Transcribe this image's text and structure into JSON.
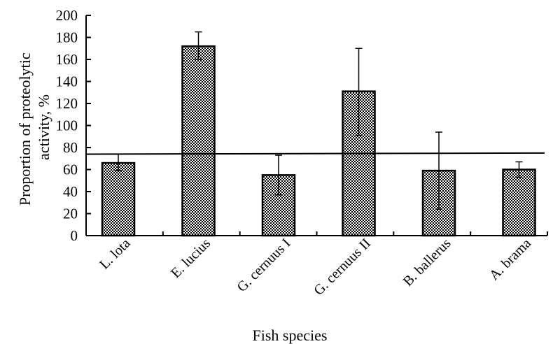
{
  "chart_data": {
    "type": "bar",
    "categories": [
      "L. lota",
      "E. lucius",
      "G. cernuus I",
      "G. cernuus II",
      "B. ballerus",
      "A. brama"
    ],
    "series": [
      {
        "values": [
          66,
          172,
          55,
          131,
          59,
          60
        ],
        "error_plus": [
          8,
          13,
          18,
          39,
          35,
          7
        ],
        "error_minus": [
          7,
          12,
          18,
          40,
          35,
          7
        ]
      }
    ],
    "ylim": [
      0,
      200
    ],
    "yticks": [
      0,
      20,
      40,
      60,
      80,
      100,
      120,
      140,
      160,
      180,
      200
    ],
    "ylabel_line1": "Proportion of proteolytic",
    "ylabel_line2": "activity, %",
    "xlabel": "Fish species",
    "reference_line": {
      "start": 74,
      "end": 75
    },
    "grid": false,
    "legend": "none",
    "bar_pattern": "checkerboard",
    "colors": {
      "bar_dark": "#000000",
      "bar_light": "#ffffff",
      "axis": "#000000"
    }
  }
}
